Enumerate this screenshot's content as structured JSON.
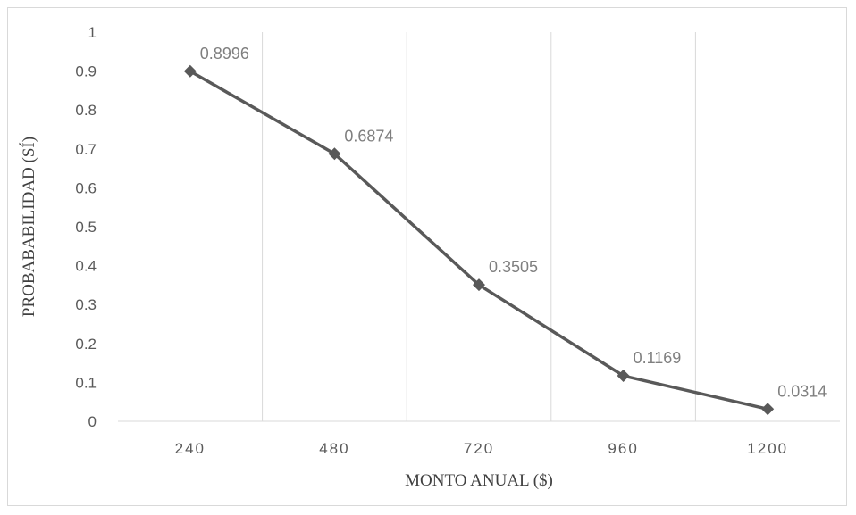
{
  "chart_data": {
    "type": "line",
    "categories": [
      "240",
      "480",
      "720",
      "960",
      "1200"
    ],
    "series": [
      {
        "values": [
          0.8996,
          0.6874,
          0.3505,
          0.1169,
          0.0314
        ],
        "data_labels": [
          "0.8996",
          "0.6874",
          "0.3505",
          "0.1169",
          "0.0314"
        ],
        "color": "#595959",
        "marker": "diamond"
      }
    ],
    "xlabel": "MONTO ANUAL ($)",
    "ylabel": "PROBABABILIDAD (SÍ)",
    "ylim": [
      0,
      1
    ],
    "yticks": [
      "0",
      "0.1",
      "0.2",
      "0.3",
      "0.4",
      "0.5",
      "0.6",
      "0.7",
      "0.8",
      "0.9",
      "1"
    ],
    "grid": "vertical",
    "legend": "none"
  }
}
